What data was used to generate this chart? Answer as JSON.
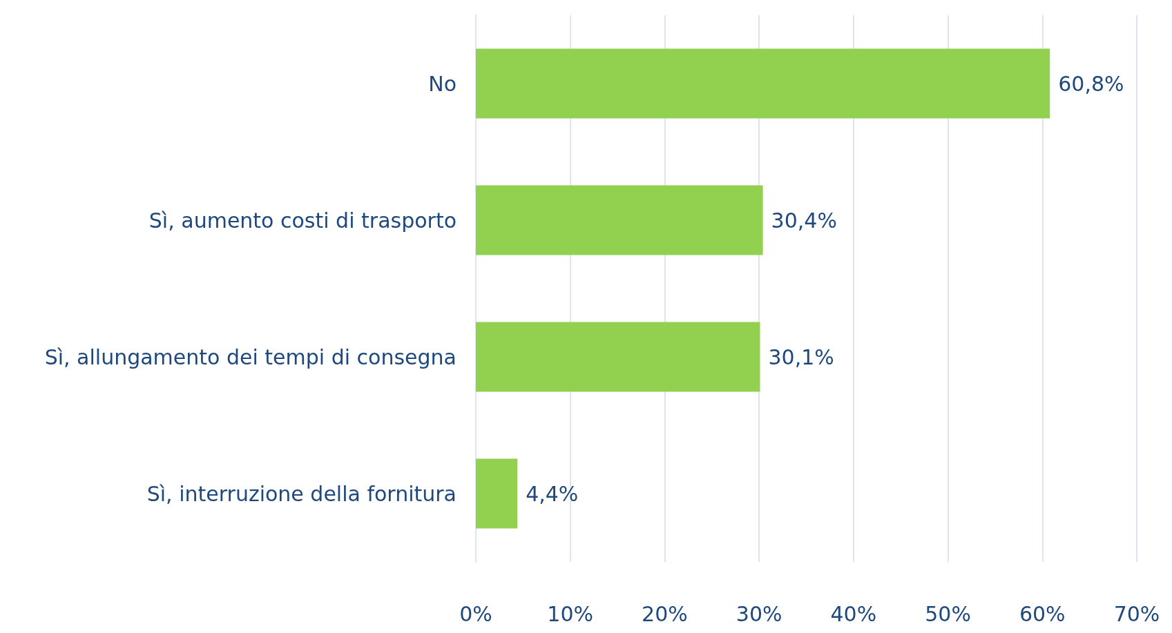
{
  "chart_data": {
    "type": "bar",
    "orientation": "horizontal",
    "categories": [
      "No",
      "Sì, aumento costi di trasporto",
      "Sì, allungamento dei tempi di consegna",
      "Sì, interruzione della fornitura"
    ],
    "values": [
      60.8,
      30.4,
      30.1,
      4.4
    ],
    "value_labels": [
      "60,8%",
      "30,4%",
      "30,1%",
      "4,4%"
    ],
    "color": "#92d050",
    "xlim": [
      0,
      70
    ],
    "xticks": [
      {
        "value": 0,
        "label": "0%"
      },
      {
        "value": 10,
        "label": "10%"
      },
      {
        "value": 20,
        "label": "20%"
      },
      {
        "value": 30,
        "label": "30%"
      },
      {
        "value": 40,
        "label": "40%"
      },
      {
        "value": 50,
        "label": "50%"
      },
      {
        "value": 60,
        "label": "60%"
      },
      {
        "value": 70,
        "label": "70%"
      }
    ],
    "grid": "x"
  }
}
